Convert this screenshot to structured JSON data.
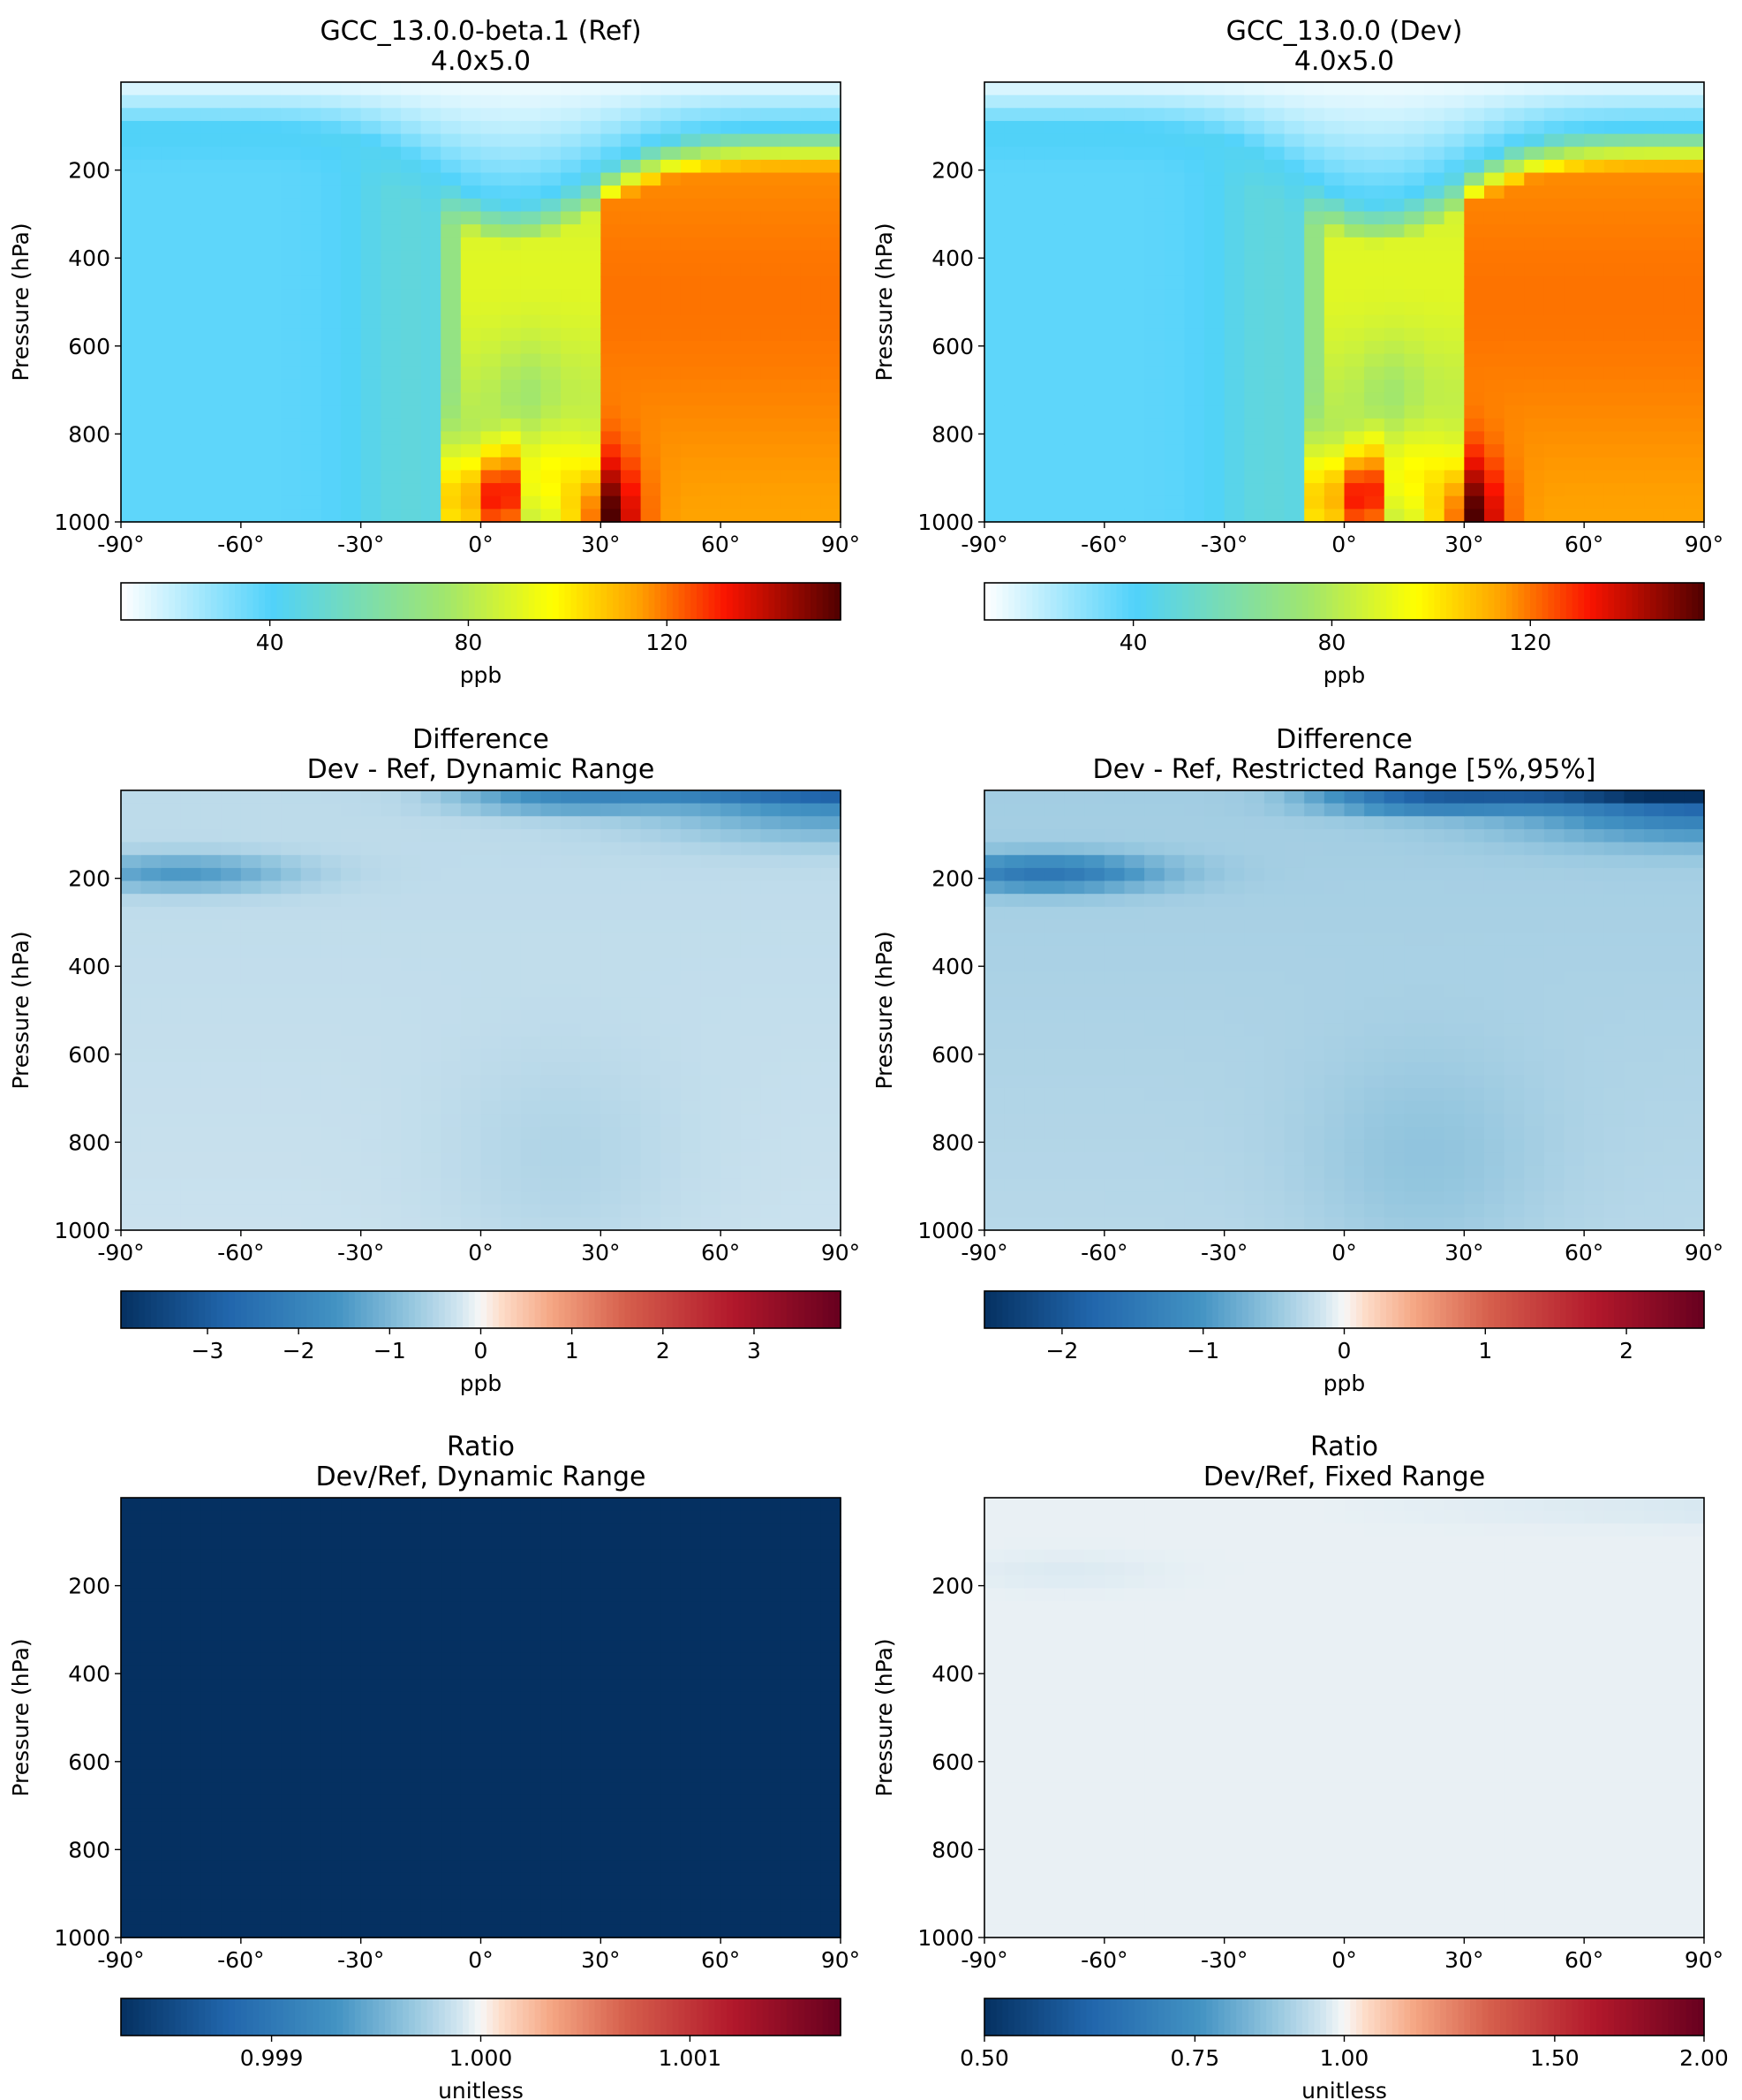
{
  "chart_data": [
    {
      "type": "heatmap",
      "panel": "ref",
      "title": "GCC_13.0.0-beta.1 (Ref)",
      "subtitle": "4.0x5.0",
      "ylabel": "Pressure (hPa)",
      "xlim": [
        -90,
        90
      ],
      "ylim": [
        1000,
        0
      ],
      "x_ticks": [
        "-90°",
        "-60°",
        "-30°",
        "0°",
        "30°",
        "60°",
        "90°"
      ],
      "y_ticks": [
        "200",
        "400",
        "600",
        "800",
        "1000"
      ],
      "colormap": "WhGrYlRd",
      "colorbar": {
        "label": "ppb",
        "ticks": [
          "40",
          "80",
          "120"
        ],
        "tick_values": [
          40,
          80,
          120
        ],
        "range": [
          10,
          155
        ]
      },
      "field": "ozone",
      "approx_values": {
        "stratosphere_top": 15,
        "tropics_southern_hemisphere_lower": 38,
        "tropics_upper_troposphere": 85,
        "northern_midlatitude_free_troposphere": 115,
        "northern_midlatitude_surface_max": 150
      }
    },
    {
      "type": "heatmap",
      "panel": "dev",
      "title": "GCC_13.0.0 (Dev)",
      "subtitle": "4.0x5.0",
      "ylabel": "Pressure (hPa)",
      "xlim": [
        -90,
        90
      ],
      "ylim": [
        1000,
        0
      ],
      "x_ticks": [
        "-90°",
        "-60°",
        "-30°",
        "0°",
        "30°",
        "60°",
        "90°"
      ],
      "y_ticks": [
        "200",
        "400",
        "600",
        "800",
        "1000"
      ],
      "colormap": "WhGrYlRd",
      "colorbar": {
        "label": "ppb",
        "ticks": [
          "40",
          "80",
          "120"
        ],
        "tick_values": [
          40,
          80,
          120
        ],
        "range": [
          10,
          155
        ]
      },
      "field": "ozone"
    },
    {
      "type": "heatmap",
      "panel": "diff_dynamic",
      "title": "Difference",
      "subtitle": "Dev - Ref, Dynamic Range",
      "ylabel": "Pressure (hPa)",
      "xlim": [
        -90,
        90
      ],
      "ylim": [
        1000,
        0
      ],
      "x_ticks": [
        "-90°",
        "-60°",
        "-30°",
        "0°",
        "30°",
        "60°",
        "90°"
      ],
      "y_ticks": [
        "200",
        "400",
        "600",
        "800",
        "1000"
      ],
      "colormap": "RdBu_r",
      "colorbar": {
        "label": "ppb",
        "ticks": [
          "−3",
          "−2",
          "−1",
          "0",
          "1",
          "2",
          "3"
        ],
        "tick_values": [
          -3,
          -2,
          -1,
          0,
          1,
          2,
          3
        ],
        "range": [
          -3.95,
          3.95
        ]
      },
      "field": "difference",
      "min_value": -3.9
    },
    {
      "type": "heatmap",
      "panel": "diff_restricted",
      "title": "Difference",
      "subtitle": "Dev - Ref, Restricted Range [5%,95%]",
      "ylabel": "Pressure (hPa)",
      "xlim": [
        -90,
        90
      ],
      "ylim": [
        1000,
        0
      ],
      "x_ticks": [
        "-90°",
        "-60°",
        "-30°",
        "0°",
        "30°",
        "60°",
        "90°"
      ],
      "y_ticks": [
        "200",
        "400",
        "600",
        "800",
        "1000"
      ],
      "colormap": "RdBu_r",
      "colorbar": {
        "label": "ppb",
        "ticks": [
          "−2",
          "−1",
          "0",
          "1",
          "2"
        ],
        "tick_values": [
          -2,
          -1,
          0,
          1,
          2
        ],
        "range": [
          -2.55,
          2.55
        ]
      },
      "field": "difference"
    },
    {
      "type": "heatmap",
      "panel": "ratio_dynamic",
      "title": "Ratio",
      "subtitle": "Dev/Ref, Dynamic Range",
      "ylabel": "Pressure (hPa)",
      "xlim": [
        -90,
        90
      ],
      "ylim": [
        1000,
        0
      ],
      "x_ticks": [
        "-90°",
        "-60°",
        "-30°",
        "0°",
        "30°",
        "60°",
        "90°"
      ],
      "y_ticks": [
        "200",
        "400",
        "600",
        "800",
        "1000"
      ],
      "colormap": "RdBu_r",
      "colorbar": {
        "label": "unitless",
        "ticks": [
          "0.999",
          "1.000",
          "1.001"
        ],
        "tick_values": [
          0.999,
          1.0,
          1.001
        ],
        "range": [
          0.99828,
          1.00172
        ]
      },
      "field": "ratio",
      "uniform_value": 0.998
    },
    {
      "type": "heatmap",
      "panel": "ratio_fixed",
      "title": "Ratio",
      "subtitle": "Dev/Ref, Fixed Range",
      "ylabel": "Pressure (hPa)",
      "xlim": [
        -90,
        90
      ],
      "ylim": [
        1000,
        0
      ],
      "x_ticks": [
        "-90°",
        "-60°",
        "-30°",
        "0°",
        "30°",
        "60°",
        "90°"
      ],
      "y_ticks": [
        "200",
        "400",
        "600",
        "800",
        "1000"
      ],
      "colormap": "RdBu_r (log-centered)",
      "colorbar": {
        "label": "unitless",
        "ticks": [
          "0.50",
          "0.75",
          "1.00",
          "1.50",
          "2.00"
        ],
        "tick_values": [
          0.5,
          0.75,
          1.0,
          1.5,
          2.0
        ],
        "range": [
          0.5,
          2.0
        ]
      },
      "field": "ratio"
    }
  ]
}
